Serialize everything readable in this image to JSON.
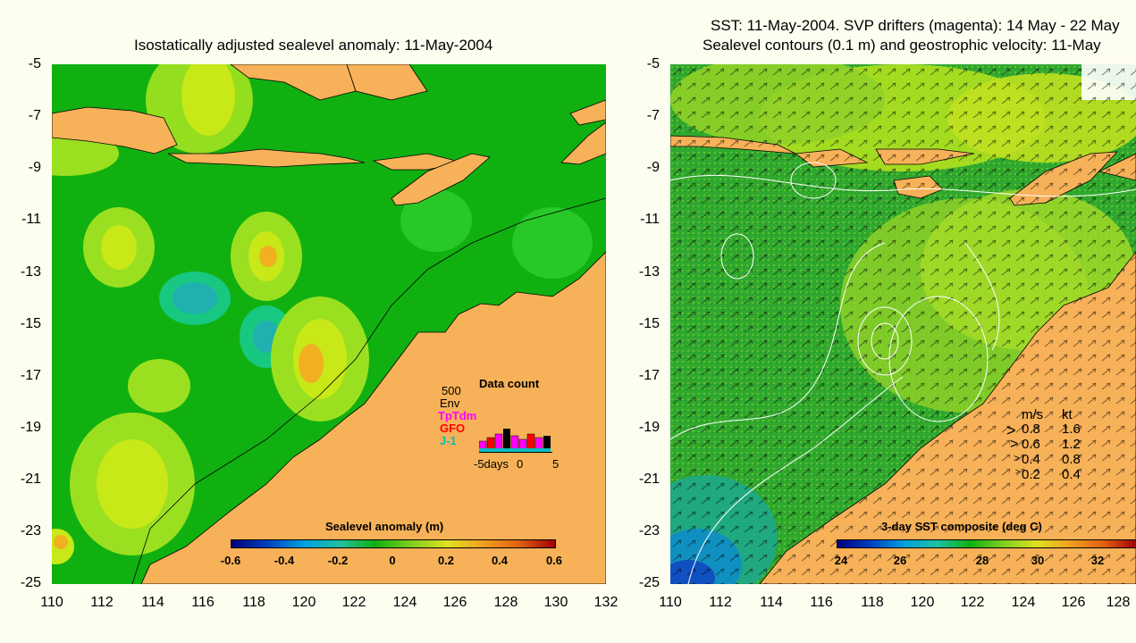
{
  "left_map": {
    "title": "Isostatically adjusted sealevel anomaly: 11-May-2004",
    "y_ticks": [
      "-5",
      "-7",
      "-9",
      "-11",
      "-13",
      "-15",
      "-17",
      "-19",
      "-21",
      "-23",
      "-25"
    ],
    "x_ticks": [
      "110",
      "112",
      "114",
      "116",
      "118",
      "120",
      "122",
      "124",
      "126",
      "128",
      "130",
      "132"
    ],
    "colorbar": {
      "label": "Sealevel anomaly (m)",
      "ticks": [
        "-0.6",
        "-0.4",
        "-0.2",
        "0",
        "0.2",
        "0.4",
        "0.6"
      ]
    },
    "data_count": {
      "title": "Data count",
      "scale_value": "500",
      "legend": [
        "Env",
        "TpTdm",
        "GFO",
        "J-1"
      ],
      "legend_colors": [
        "#000000",
        "#ff00ff",
        "#ff0000",
        "#00c0c0"
      ],
      "x_labels": [
        "-5days",
        "0",
        "5"
      ]
    }
  },
  "right_map": {
    "title_line1": "SST: 11-May-2004. SVP drifters (magenta): 14 May - 22 May",
    "title_line2": "Sealevel contours (0.1 m) and geostrophic velocity: 11-May",
    "y_ticks": [
      "-5",
      "-7",
      "-9",
      "-11",
      "-13",
      "-15",
      "-17",
      "-19",
      "-21",
      "-23",
      "-25"
    ],
    "x_ticks": [
      "110",
      "112",
      "114",
      "116",
      "118",
      "120",
      "122",
      "124",
      "126",
      "128"
    ],
    "colorbar": {
      "label": "3-day SST composite (deg C)",
      "ticks": [
        "24",
        "26",
        "28",
        "30",
        "32"
      ]
    },
    "velocity_legend": {
      "header_ms": "m/s",
      "header_kt": "kt",
      "rows": [
        {
          "ms": "0.8",
          "kt": "1.6"
        },
        {
          "ms": "0.6",
          "kt": "1.2"
        },
        {
          "ms": "0.4",
          "kt": "0.8"
        },
        {
          "ms": "0.2",
          "kt": "0.4"
        }
      ]
    }
  },
  "colors": {
    "land": "#f7b158",
    "ocean_base": "#10b010",
    "background": "#fdfdf0"
  }
}
